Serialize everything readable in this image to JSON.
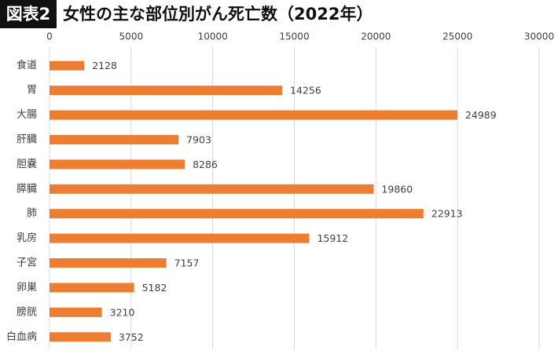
{
  "chart_data": {
    "type": "bar",
    "badge": "図表2",
    "title": "女性の主な部位別がん死亡数（2022年）",
    "categories": [
      "食道",
      "胃",
      "大腸",
      "肝臓",
      "胆嚢",
      "膵臓",
      "肺",
      "乳房",
      "子宮",
      "卵巣",
      "膀胱",
      "白血病"
    ],
    "values": [
      2128,
      14256,
      24989,
      7903,
      8286,
      19860,
      22913,
      15912,
      7157,
      5182,
      3210,
      3752
    ],
    "color": "#ed7d31",
    "xlim": [
      0,
      30000
    ],
    "xticks": [
      0,
      5000,
      10000,
      15000,
      20000,
      25000,
      30000
    ],
    "grid": true
  }
}
